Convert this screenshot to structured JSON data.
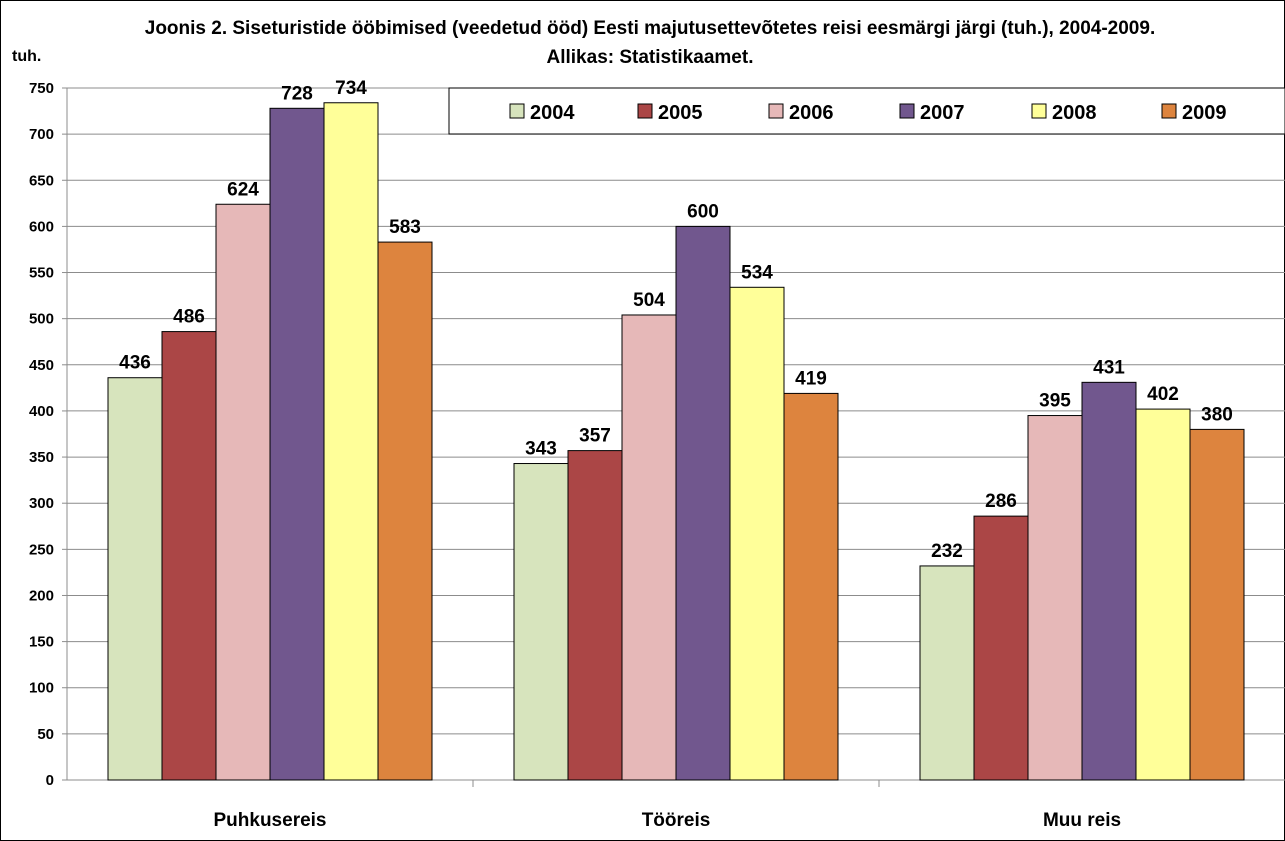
{
  "chart_data": {
    "type": "bar",
    "title": "Joonis 2. Siseturistide ööbimised (veedetud ööd) Eesti majutusettevõtetes reisi eesmärgi järgi (tuh.), 2004-2009. Allikas: Statistikaamet.",
    "ylabel": "tuh.",
    "xlabel": "",
    "categories": [
      "Puhkusereis",
      "Tööreis",
      "Muu reis"
    ],
    "ylim": [
      0,
      750
    ],
    "ytick_step": 50,
    "grid": true,
    "legend_position": "top-right",
    "series": [
      {
        "name": "2004",
        "color": "#d7e4bd",
        "values": [
          436,
          343,
          232
        ]
      },
      {
        "name": "2005",
        "color": "#ab4646",
        "values": [
          486,
          357,
          286
        ]
      },
      {
        "name": "2006",
        "color": "#e6b8b8",
        "values": [
          624,
          504,
          395
        ]
      },
      {
        "name": "2007",
        "color": "#71578e",
        "values": [
          728,
          600,
          431
        ]
      },
      {
        "name": "2008",
        "color": "#ffff99",
        "values": [
          734,
          534,
          402
        ]
      },
      {
        "name": "2009",
        "color": "#dd843e",
        "values": [
          583,
          419,
          380
        ]
      }
    ]
  }
}
